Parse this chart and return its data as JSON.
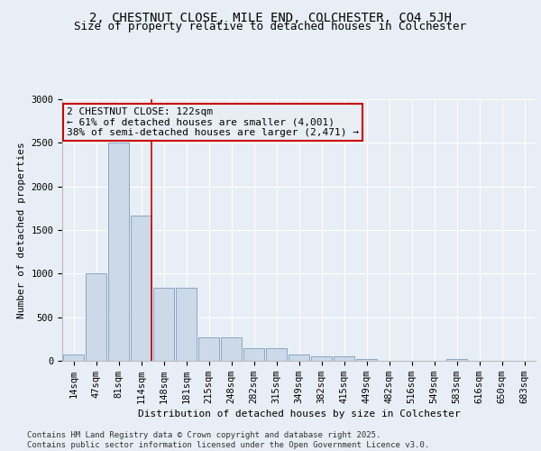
{
  "title1": "2, CHESTNUT CLOSE, MILE END, COLCHESTER, CO4 5JH",
  "title2": "Size of property relative to detached houses in Colchester",
  "xlabel": "Distribution of detached houses by size in Colchester",
  "ylabel": "Number of detached properties",
  "categories": [
    "14sqm",
    "47sqm",
    "81sqm",
    "114sqm",
    "148sqm",
    "181sqm",
    "215sqm",
    "248sqm",
    "282sqm",
    "315sqm",
    "349sqm",
    "382sqm",
    "415sqm",
    "449sqm",
    "482sqm",
    "516sqm",
    "549sqm",
    "583sqm",
    "616sqm",
    "650sqm",
    "683sqm"
  ],
  "values": [
    70,
    1000,
    2500,
    1670,
    840,
    840,
    270,
    270,
    150,
    150,
    70,
    55,
    50,
    25,
    0,
    0,
    0,
    20,
    0,
    0,
    0
  ],
  "bar_color": "#ccd9e8",
  "bar_edge_color": "#7a9dbf",
  "vline_index": 3,
  "vline_color": "#cc0000",
  "annotation_text": "2 CHESTNUT CLOSE: 122sqm\n← 61% of detached houses are smaller (4,001)\n38% of semi-detached houses are larger (2,471) →",
  "annotation_box_color": "#cc0000",
  "annotation_bg": "#e8eef4",
  "ylim": [
    0,
    3000
  ],
  "yticks": [
    0,
    500,
    1000,
    1500,
    2000,
    2500,
    3000
  ],
  "background_color": "#e8eef5",
  "grid_color": "#ffffff",
  "footer_text": "Contains HM Land Registry data © Crown copyright and database right 2025.\nContains public sector information licensed under the Open Government Licence v3.0.",
  "title1_fontsize": 10,
  "title2_fontsize": 9,
  "axis_fontsize": 7.5,
  "ylabel_fontsize": 8,
  "xlabel_fontsize": 8,
  "annotation_fontsize": 8,
  "footer_fontsize": 6.5
}
